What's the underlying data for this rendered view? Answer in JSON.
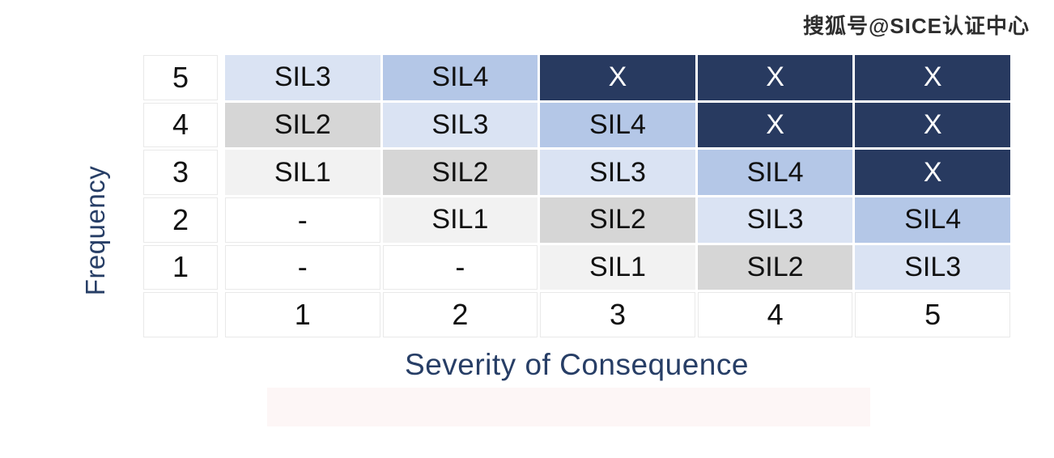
{
  "watermark": "搜狐号@SICE认证中心",
  "chart_data": {
    "type": "heatmap",
    "title": "",
    "xlabel": "Severity of Consequence",
    "ylabel": "Frequency",
    "x_categories": [
      "1",
      "2",
      "3",
      "4",
      "5"
    ],
    "y_categories": [
      "5",
      "4",
      "3",
      "2",
      "1"
    ],
    "legend_position": "none",
    "grid": false,
    "rows": [
      {
        "label": "5",
        "cells": [
          {
            "text": "SIL3",
            "level": "sil3"
          },
          {
            "text": "SIL4",
            "level": "sil4"
          },
          {
            "text": "X",
            "level": "x"
          },
          {
            "text": "X",
            "level": "x"
          },
          {
            "text": "X",
            "level": "x"
          }
        ]
      },
      {
        "label": "4",
        "cells": [
          {
            "text": "SIL2",
            "level": "sil2"
          },
          {
            "text": "SIL3",
            "level": "sil3"
          },
          {
            "text": "SIL4",
            "level": "sil4"
          },
          {
            "text": "X",
            "level": "x"
          },
          {
            "text": "X",
            "level": "x"
          }
        ]
      },
      {
        "label": "3",
        "cells": [
          {
            "text": "SIL1",
            "level": "sil1"
          },
          {
            "text": "SIL2",
            "level": "sil2"
          },
          {
            "text": "SIL3",
            "level": "sil3"
          },
          {
            "text": "SIL4",
            "level": "sil4"
          },
          {
            "text": "X",
            "level": "x"
          }
        ]
      },
      {
        "label": "2",
        "cells": [
          {
            "text": "-",
            "level": "blank"
          },
          {
            "text": "SIL1",
            "level": "sil1"
          },
          {
            "text": "SIL2",
            "level": "sil2"
          },
          {
            "text": "SIL3",
            "level": "sil3"
          },
          {
            "text": "SIL4",
            "level": "sil4"
          }
        ]
      },
      {
        "label": "1",
        "cells": [
          {
            "text": "-",
            "level": "blank"
          },
          {
            "text": "-",
            "level": "blank"
          },
          {
            "text": "SIL1",
            "level": "sil1"
          },
          {
            "text": "SIL2",
            "level": "sil2"
          },
          {
            "text": "SIL3",
            "level": "sil3"
          }
        ]
      }
    ]
  },
  "colors": {
    "x_cell": "#283A60",
    "sil4": "#B4C7E7",
    "sil3": "#DAE3F3",
    "sil2": "#D6D6D6",
    "sil1": "#F2F2F2",
    "blank": "#FFFFFF",
    "x_text": "#FFFFFF",
    "cell_text": "#111111",
    "axis_label": "#273E66"
  }
}
